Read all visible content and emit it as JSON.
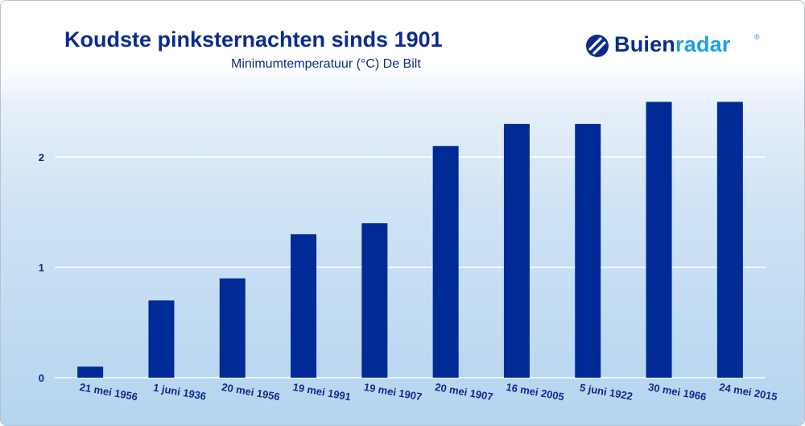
{
  "title": "Koudste pinksternachten sinds 1901",
  "subtitle": "Minimumtemperatuur (°C) De Bilt",
  "brand": {
    "name_part1": "Buien",
    "name_part2": "radar",
    "registered": "®",
    "logo_icon": "buienradar-logo-icon",
    "color_dark": "#0b2c8c",
    "color_light": "#1ea0e6"
  },
  "chart_data": {
    "type": "bar",
    "title": "Koudste pinksternachten sinds 1901",
    "subtitle": "Minimumtemperatuur (°C) De Bilt",
    "categories": [
      "21 mei 1956",
      "1 juni 1936",
      "20 mei 1956",
      "19 mei 1991",
      "19 mei 1907",
      "20 mei 1907",
      "16 mei 2005",
      "5 juni 1922",
      "30 mei 1966",
      "24 mei 2015"
    ],
    "values": [
      0.1,
      0.7,
      0.9,
      1.3,
      1.4,
      2.1,
      2.3,
      2.3,
      2.5,
      2.5
    ],
    "yticks": [
      0,
      1,
      2
    ],
    "ylim": [
      0,
      2.5
    ],
    "grid": true,
    "bar_color": "#002a96",
    "grid_color": "#ffffff"
  }
}
